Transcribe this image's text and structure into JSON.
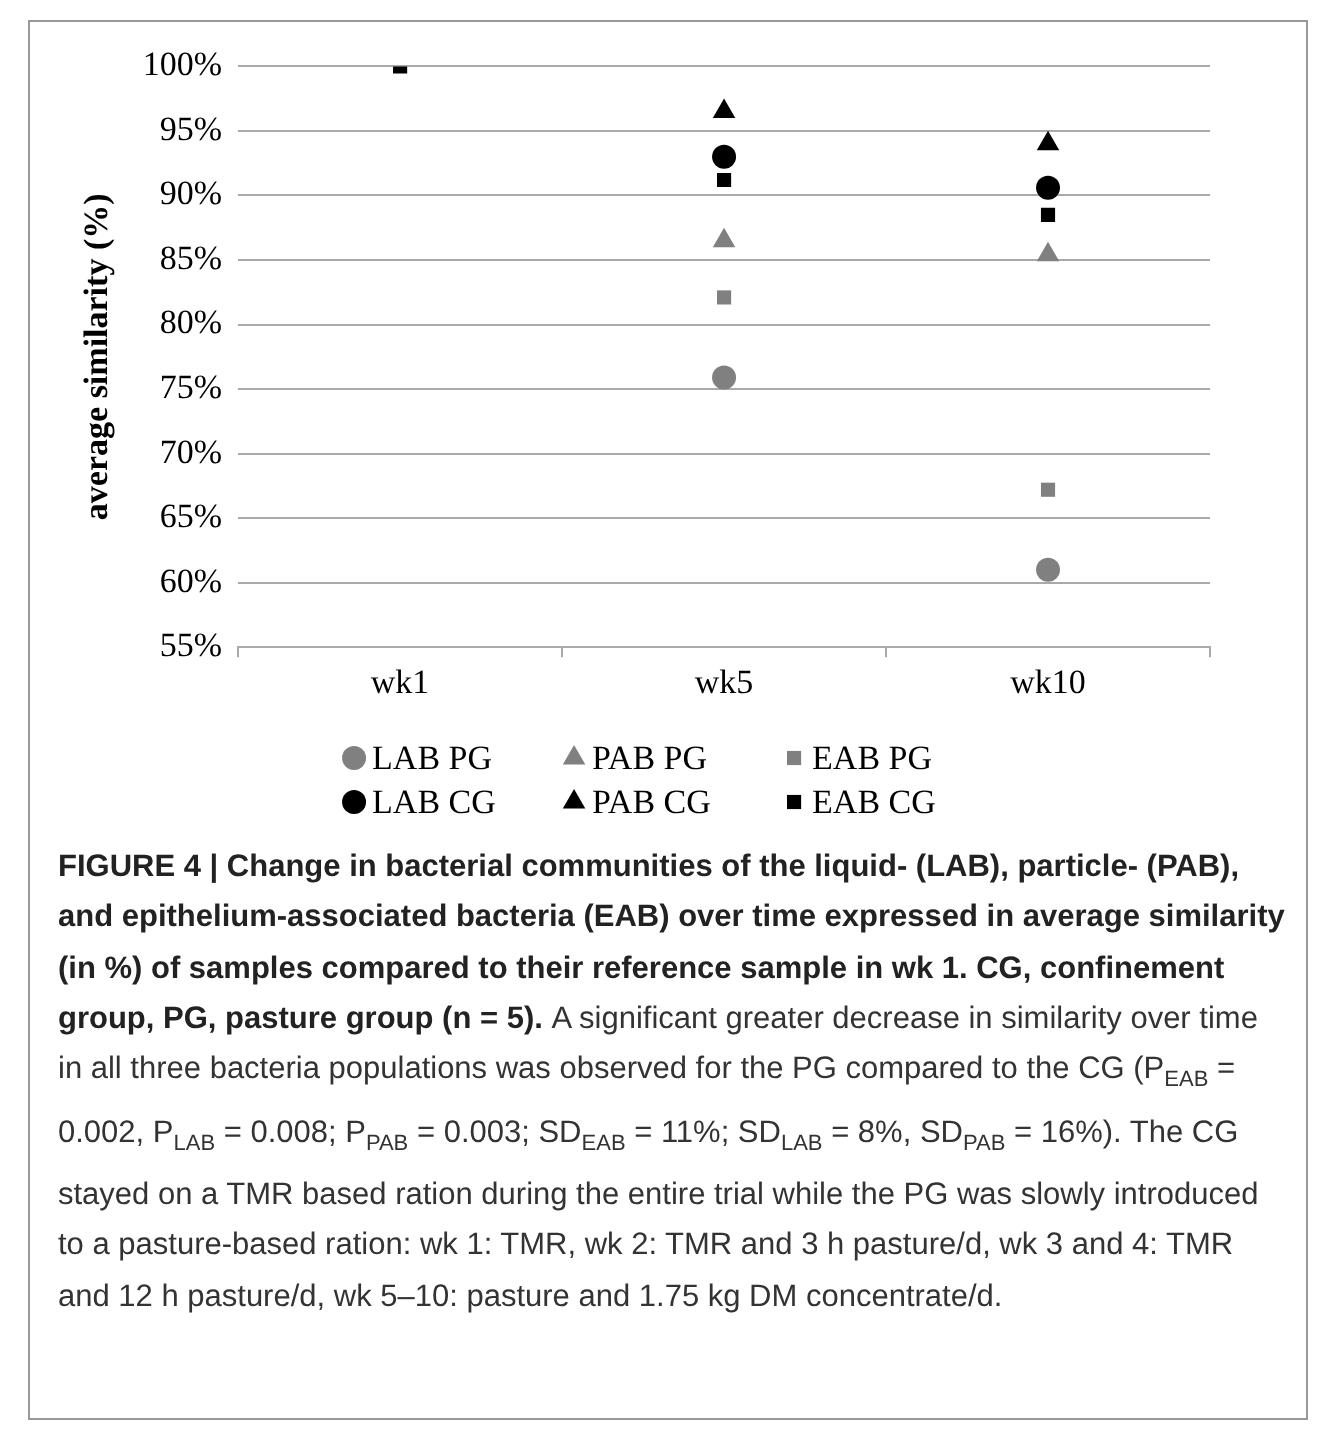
{
  "chart_data": {
    "type": "scatter",
    "ylabel": "average similarity (%)",
    "categories": [
      "wk1",
      "wk5",
      "wk10"
    ],
    "ylim": [
      55,
      100
    ],
    "yticks": [
      {
        "value": 55,
        "label": "55%"
      },
      {
        "value": 60,
        "label": "60%"
      },
      {
        "value": 65,
        "label": "65%"
      },
      {
        "value": 70,
        "label": "70%"
      },
      {
        "value": 75,
        "label": "75%"
      },
      {
        "value": 80,
        "label": "80%"
      },
      {
        "value": 85,
        "label": "85%"
      },
      {
        "value": 90,
        "label": "90%"
      },
      {
        "value": 95,
        "label": "95%"
      },
      {
        "value": 100,
        "label": "100%"
      }
    ],
    "grid": "y",
    "legend": "bottom",
    "series": [
      {
        "name": "LAB PG",
        "color": "#808080",
        "marker": "circle",
        "values": [
          null,
          75.9,
          61
        ]
      },
      {
        "name": "PAB PG",
        "color": "#808080",
        "marker": "triangle",
        "values": [
          null,
          86.5,
          85.4
        ]
      },
      {
        "name": "EAB PG",
        "color": "#808080",
        "marker": "square",
        "values": [
          null,
          82.1,
          67.2
        ]
      },
      {
        "name": "LAB CG",
        "color": "#000000",
        "marker": "circle",
        "values": [
          null,
          93,
          90.6
        ]
      },
      {
        "name": "PAB CG",
        "color": "#000000",
        "marker": "triangle",
        "values": [
          null,
          96.5,
          94
        ]
      },
      {
        "name": "EAB CG",
        "color": "#000000",
        "marker": "square",
        "values": [
          100,
          91.2,
          88.5
        ]
      }
    ],
    "annotations": [
      "FIGURE 4 | Change in bacterial communities of the liquid- (LAB), particle- (PAB), and epithelium-associated bacteria (EAB) over time expressed in average similarity (in %) of samples compared to their reference sample in wk 1. CG, confinement group, PG, pasture group (n = 5).",
      "A significant greater decrease in similarity over time in all three bacteria populations was observed for the PG compared to the CG (P$_{EAB}$ = 0.002, P$_{LAB}$ = 0.008; P$_{PAB}$ = 0.003; SD$_{EAB}$ = 11%; SD$_{LAB}$ = 8%, SD$_{PAB}$ = 16%). The CG stayed on a TMR based ration during the entire trial while the PG was slowly introduced to a pasture-based ration: wk 1: TMR, wk 2: TMR and 3 h pasture/d, wk 3 and 4: TMR and 12 h pasture/d, wk 5–10: pasture and 1.75 kg DM concentrate/d."
    ]
  }
}
